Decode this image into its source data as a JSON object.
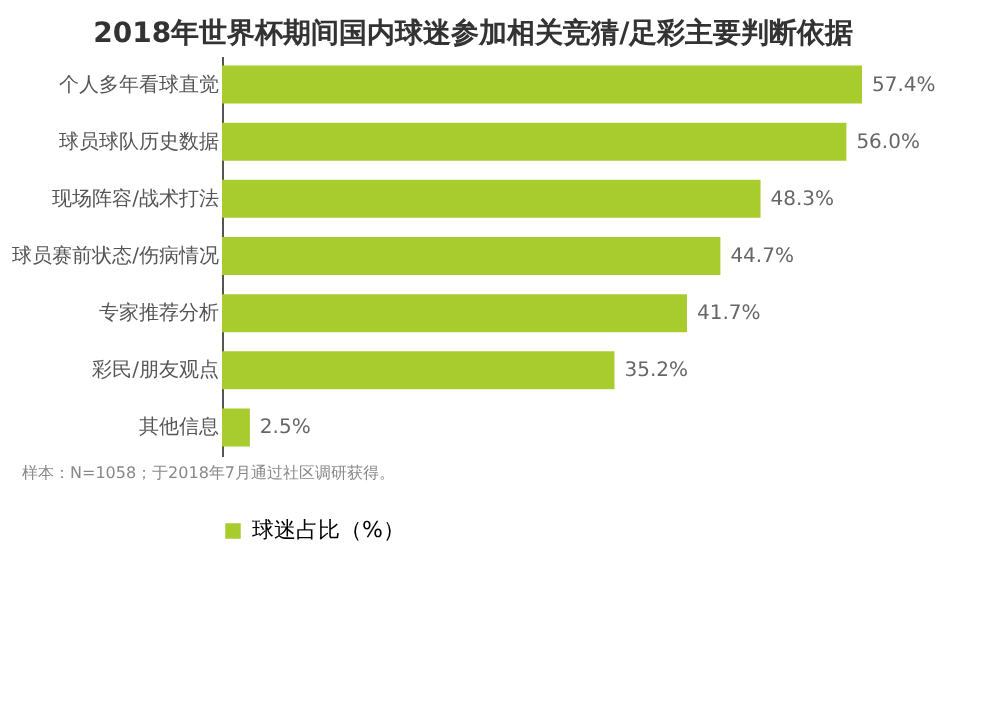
{
  "chart_data": {
    "type": "bar",
    "orientation": "horizontal",
    "title": "2018年世界杯期间国内球迷参加相关竞猜/足彩主要判断依据",
    "categories": [
      "个人多年看球直觉",
      "球员球队历史数据",
      "现场阵容/战术打法",
      "球员赛前状态/伤病情况",
      "专家推荐分析",
      "彩民/朋友观点",
      "其他信息"
    ],
    "series": [
      {
        "name": "球迷占比（%）",
        "color": "#a8cb2d",
        "values": [
          57.4,
          56.0,
          48.3,
          44.7,
          41.7,
          35.2,
          2.5
        ],
        "value_labels": [
          "57.4%",
          "56.0%",
          "48.3%",
          "44.7%",
          "41.7%",
          "35.2%",
          "2.5%"
        ]
      }
    ],
    "tick_labels": "y",
    "legend": "bottom",
    "annotations": [
      "样本：N=1058；于2018年7月通过社区调研获得。"
    ]
  }
}
